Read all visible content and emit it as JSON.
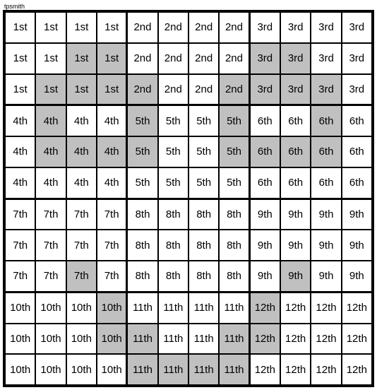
{
  "label": "tpsmith",
  "grid": {
    "cols": 12,
    "rows": 12,
    "block_cols": 4,
    "block_rows": 3,
    "background_color": "#ffffff",
    "shaded_color": "#c0c0c0",
    "border_color": "#000000",
    "font_size": 15,
    "block_labels": [
      "1st",
      "2nd",
      "3rd",
      "4th",
      "5th",
      "6th",
      "7th",
      "8th",
      "9th",
      "10th",
      "11th",
      "12th"
    ],
    "shaded_cells": [
      [
        1,
        2
      ],
      [
        1,
        3
      ],
      [
        1,
        8
      ],
      [
        1,
        9
      ],
      [
        2,
        1
      ],
      [
        2,
        2
      ],
      [
        2,
        3
      ],
      [
        2,
        4
      ],
      [
        2,
        7
      ],
      [
        2,
        8
      ],
      [
        2,
        9
      ],
      [
        2,
        10
      ],
      [
        3,
        1
      ],
      [
        3,
        4
      ],
      [
        3,
        7
      ],
      [
        3,
        10
      ],
      [
        4,
        1
      ],
      [
        4,
        2
      ],
      [
        4,
        3
      ],
      [
        4,
        4
      ],
      [
        4,
        7
      ],
      [
        4,
        8
      ],
      [
        4,
        9
      ],
      [
        4,
        10
      ],
      [
        8,
        2
      ],
      [
        8,
        9
      ],
      [
        9,
        3
      ],
      [
        9,
        8
      ],
      [
        10,
        3
      ],
      [
        10,
        4
      ],
      [
        10,
        7
      ],
      [
        10,
        8
      ],
      [
        11,
        4
      ],
      [
        11,
        5
      ],
      [
        11,
        6
      ],
      [
        11,
        7
      ]
    ]
  }
}
